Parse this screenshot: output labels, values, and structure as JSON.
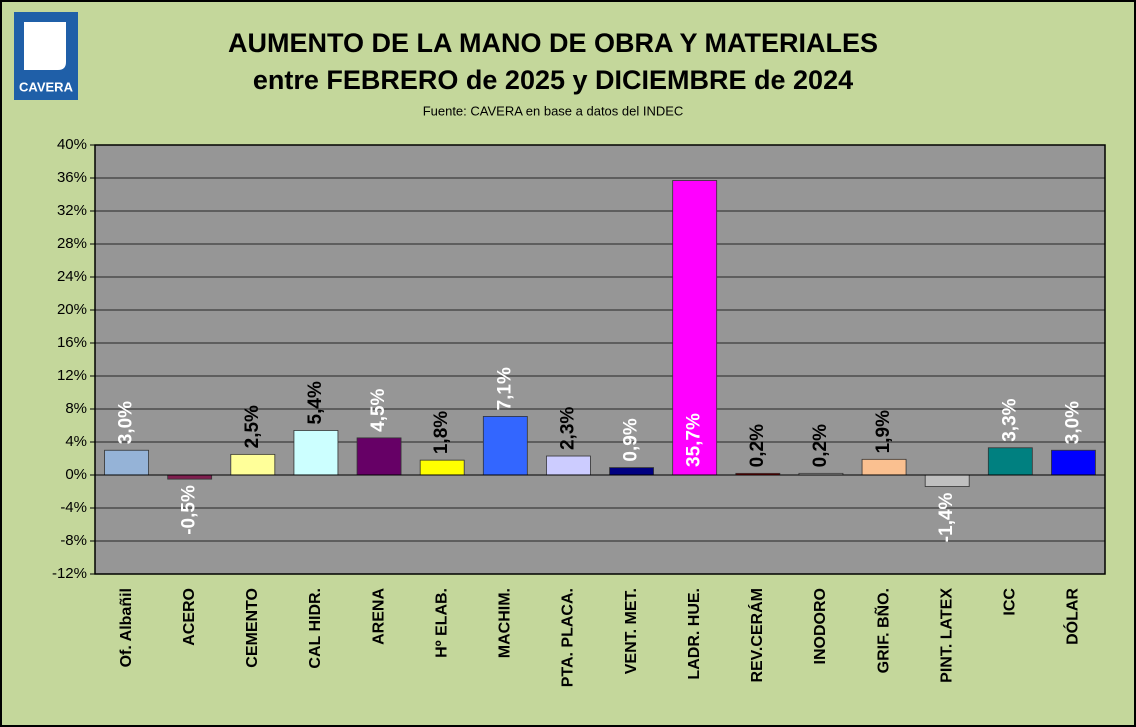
{
  "chart_data": {
    "type": "bar",
    "logo_text": "CAVERA",
    "title": [
      "AUMENTO DE LA MANO DE OBRA Y MATERIALES",
      "entre FEBRERO de 2025  y  DICIEMBRE de 2024"
    ],
    "subtitle": "Fuente: CAVERA en base a datos del INDEC",
    "categories": [
      "Of. Albañil",
      "ACERO",
      "CEMENTO",
      "CAL HIDR.",
      "ARENA",
      "Hº ELAB.",
      "MACHIM.",
      "PTA. PLACA.",
      "VENT. MET.",
      "LADR. HUE.",
      "REV.CERÁM",
      "INODORO",
      "GRIF. BÑO.",
      "PINT. LATEX",
      "ICC",
      "DÓLAR"
    ],
    "values": [
      3.0,
      -0.5,
      2.5,
      5.4,
      4.5,
      1.8,
      7.1,
      2.3,
      0.9,
      35.7,
      0.2,
      0.2,
      1.9,
      -1.4,
      3.3,
      3.0
    ],
    "value_labels": [
      "3,0%",
      "-0,5%",
      "2,5%",
      "5,4%",
      "4,5%",
      "1,8%",
      "7,1%",
      "2,3%",
      "0,9%",
      "35,7%",
      "0,2%",
      "0,2%",
      "1,9%",
      "-1,4%",
      "3,3%",
      "3,0%"
    ],
    "colors": [
      "#95b3d7",
      "#7f1f4f",
      "#ffff99",
      "#ccffff",
      "#660066",
      "#ffff00",
      "#3366ff",
      "#ccccff",
      "#000080",
      "#ff00ff",
      "#800000",
      "#b0b0b0",
      "#fac090",
      "#c0c0c0",
      "#008080",
      "#0000ff"
    ],
    "value_label_colors": [
      "#ffffff",
      "#ffffff",
      "#000000",
      "#000000",
      "#ffffff",
      "#000000",
      "#ffffff",
      "#000000",
      "#ffffff",
      "#ffffff",
      "#000000",
      "#000000",
      "#000000",
      "#ffffff",
      "#ffffff",
      "#ffffff"
    ],
    "ylim": [
      -12,
      40
    ],
    "yticks": [
      {
        "value": -12,
        "label": "-12%"
      },
      {
        "value": -8,
        "label": "-8%"
      },
      {
        "value": -4,
        "label": "-4%"
      },
      {
        "value": 0,
        "label": "0%"
      },
      {
        "value": 4,
        "label": "4%"
      },
      {
        "value": 8,
        "label": "8%"
      },
      {
        "value": 12,
        "label": "12%"
      },
      {
        "value": 16,
        "label": "16%"
      },
      {
        "value": 20,
        "label": "20%"
      },
      {
        "value": 24,
        "label": "24%"
      },
      {
        "value": 28,
        "label": "28%"
      },
      {
        "value": 32,
        "label": "32%"
      },
      {
        "value": 36,
        "label": "36%"
      },
      {
        "value": 40,
        "label": "40%"
      }
    ],
    "grid": true
  }
}
